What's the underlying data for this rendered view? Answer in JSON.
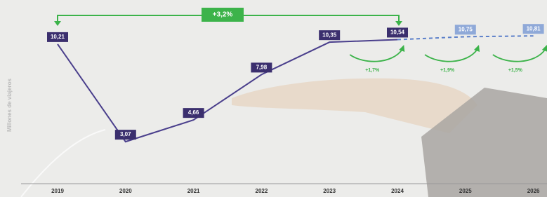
{
  "chart_data": {
    "type": "line",
    "y_label": "Millones de viajeros",
    "categories": [
      "2019",
      "2020",
      "2021",
      "2022",
      "2023",
      "2024",
      "2025",
      "2026"
    ],
    "series": [
      {
        "color": "#4a3f8c",
        "style": "solid",
        "box_color": "#3b2f6e",
        "values": [
          10.21,
          3.07,
          4.66,
          7.98,
          10.35,
          10.54,
          null,
          null
        ],
        "value_labels": [
          "10,21",
          "3,07",
          "4,66",
          "7,98",
          "10,35",
          "10,54",
          null,
          null
        ]
      },
      {
        "color": "#5b7fc9",
        "style": "dashed",
        "box_color": "#8fa9d8",
        "values": [
          null,
          null,
          null,
          null,
          null,
          10.54,
          10.75,
          10.81
        ],
        "value_labels": [
          null,
          null,
          null,
          null,
          null,
          null,
          "10,75",
          "10,81"
        ]
      }
    ],
    "total_growth": "+3,2%",
    "growth_labels": [
      "+1,7%",
      "+1,9%",
      "+1,5%"
    ],
    "ylim": [
      0,
      11
    ]
  }
}
